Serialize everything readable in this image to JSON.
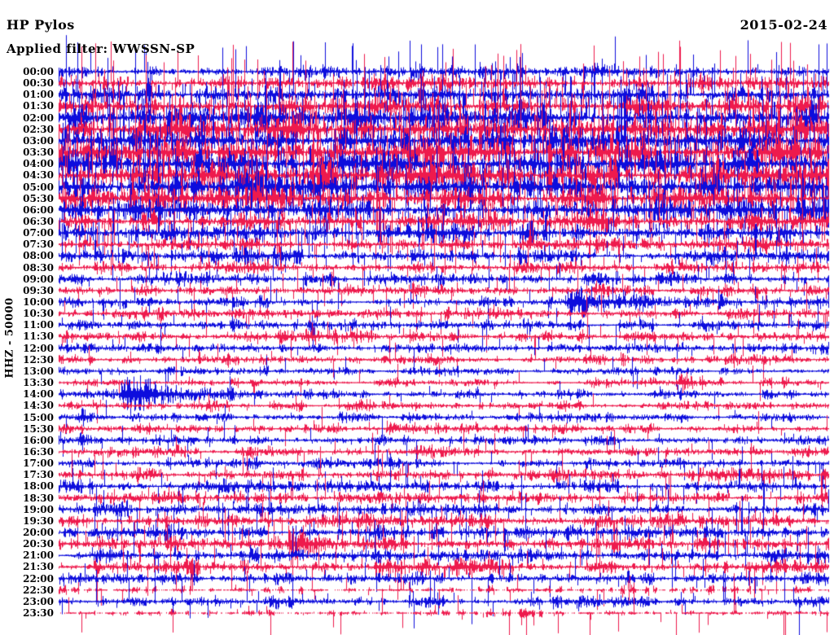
{
  "header": {
    "station": "HP Pylos",
    "filter_label": "Applied filter: WWSSN-SP",
    "date": "2015-02-24"
  },
  "y_axis": {
    "label": "HHZ - 50000"
  },
  "colors": {
    "background": "#ffffff",
    "text": "#000000",
    "blue": "#0d0ddd",
    "red": "#ee1a4d"
  },
  "chart_data": {
    "type": "line",
    "subtype": "helicorder-seismogram",
    "title": "HP Pylos",
    "date": "2015-02-24",
    "filter": "WWSSN-SP",
    "channel": "HHZ",
    "scale": 50000,
    "minutes_per_row": 30,
    "rows_count": 48,
    "time_start": "00:00",
    "time_end": "24:00",
    "color_rule": "even rows blue, odd rows red",
    "noise_note": "amp = typical noise half-amplitude in px; spike_p = tall-transient probability per column; spike_h = tall-transient height in px",
    "rows": [
      {
        "label": "00:00",
        "color": "blue",
        "amp": 2.2,
        "spike_p": 0.05,
        "spike_h": 28,
        "events": []
      },
      {
        "label": "00:30",
        "color": "red",
        "amp": 2.6,
        "spike_p": 0.08,
        "spike_h": 36,
        "events": []
      },
      {
        "label": "01:00",
        "color": "blue",
        "amp": 3.2,
        "spike_p": 0.11,
        "spike_h": 46,
        "events": []
      },
      {
        "label": "01:30",
        "color": "red",
        "amp": 4.0,
        "spike_p": 0.13,
        "spike_h": 52,
        "events": []
      },
      {
        "label": "02:00",
        "color": "blue",
        "amp": 4.8,
        "spike_p": 0.16,
        "spike_h": 58,
        "events": []
      },
      {
        "label": "02:30",
        "color": "red",
        "amp": 5.2,
        "spike_p": 0.17,
        "spike_h": 60,
        "events": []
      },
      {
        "label": "03:00",
        "color": "blue",
        "amp": 5.2,
        "spike_p": 0.17,
        "spike_h": 60,
        "events": []
      },
      {
        "label": "03:30",
        "color": "red",
        "amp": 5.2,
        "spike_p": 0.17,
        "spike_h": 58,
        "events": []
      },
      {
        "label": "04:00",
        "color": "blue",
        "amp": 5.4,
        "spike_p": 0.18,
        "spike_h": 58,
        "events": []
      },
      {
        "label": "04:30",
        "color": "red",
        "amp": 5.2,
        "spike_p": 0.17,
        "spike_h": 55,
        "events": []
      },
      {
        "label": "05:00",
        "color": "blue",
        "amp": 4.6,
        "spike_p": 0.15,
        "spike_h": 50,
        "events": []
      },
      {
        "label": "05:30",
        "color": "red",
        "amp": 4.4,
        "spike_p": 0.14,
        "spike_h": 48,
        "events": []
      },
      {
        "label": "06:00",
        "color": "blue",
        "amp": 4.2,
        "spike_p": 0.13,
        "spike_h": 42,
        "events": []
      },
      {
        "label": "06:30",
        "color": "red",
        "amp": 3.8,
        "spike_p": 0.12,
        "spike_h": 38,
        "events": []
      },
      {
        "label": "07:00",
        "color": "blue",
        "amp": 3.2,
        "spike_p": 0.09,
        "spike_h": 32,
        "events": []
      },
      {
        "label": "07:30",
        "color": "red",
        "amp": 2.9,
        "spike_p": 0.08,
        "spike_h": 30,
        "events": []
      },
      {
        "label": "08:00",
        "color": "blue",
        "amp": 2.6,
        "spike_p": 0.06,
        "spike_h": 28,
        "events": []
      },
      {
        "label": "08:30",
        "color": "red",
        "amp": 2.5,
        "spike_p": 0.06,
        "spike_h": 26,
        "events": []
      },
      {
        "label": "09:00",
        "color": "blue",
        "amp": 2.4,
        "spike_p": 0.05,
        "spike_h": 26,
        "events": []
      },
      {
        "label": "09:30",
        "color": "red",
        "amp": 2.3,
        "spike_p": 0.05,
        "spike_h": 24,
        "events": []
      },
      {
        "label": "10:00",
        "color": "blue",
        "amp": 2.2,
        "spike_p": 0.04,
        "spike_h": 22,
        "events": [
          {
            "time": "10:20",
            "pos": 0.665,
            "amp": 12,
            "coda": 45
          }
        ]
      },
      {
        "label": "10:30",
        "color": "red",
        "amp": 2.2,
        "spike_p": 0.04,
        "spike_h": 22,
        "events": []
      },
      {
        "label": "11:00",
        "color": "blue",
        "amp": 2.0,
        "spike_p": 0.035,
        "spike_h": 20,
        "events": [
          {
            "time": "11:25",
            "pos": 0.835,
            "amp": 5,
            "coda": 18
          }
        ]
      },
      {
        "label": "11:30",
        "color": "red",
        "amp": 2.0,
        "spike_p": 0.035,
        "spike_h": 20,
        "events": [
          {
            "time": "11:38",
            "pos": 0.285,
            "amp": 6,
            "coda": 20
          }
        ]
      },
      {
        "label": "12:00",
        "color": "blue",
        "amp": 1.9,
        "spike_p": 0.03,
        "spike_h": 18,
        "events": []
      },
      {
        "label": "12:30",
        "color": "red",
        "amp": 1.9,
        "spike_p": 0.03,
        "spike_h": 18,
        "events": []
      },
      {
        "label": "13:00",
        "color": "blue",
        "amp": 1.6,
        "spike_p": 0.02,
        "spike_h": 16,
        "events": []
      },
      {
        "label": "13:30",
        "color": "red",
        "amp": 1.6,
        "spike_p": 0.025,
        "spike_h": 16,
        "events": [
          {
            "time": "13:54",
            "pos": 0.805,
            "amp": 6,
            "coda": 16
          }
        ]
      },
      {
        "label": "14:00",
        "color": "blue",
        "amp": 1.6,
        "spike_p": 0.02,
        "spike_h": 16,
        "events": [
          {
            "time": "14:02",
            "pos": 0.085,
            "amp": 14,
            "coda": 60
          }
        ]
      },
      {
        "label": "14:30",
        "color": "red",
        "amp": 1.6,
        "spike_p": 0.02,
        "spike_h": 15,
        "events": []
      },
      {
        "label": "15:00",
        "color": "blue",
        "amp": 1.6,
        "spike_p": 0.02,
        "spike_h": 15,
        "events": [
          {
            "time": "15:01",
            "pos": 0.03,
            "amp": 6,
            "coda": 15
          }
        ]
      },
      {
        "label": "15:30",
        "color": "red",
        "amp": 1.7,
        "spike_p": 0.025,
        "spike_h": 16,
        "events": []
      },
      {
        "label": "16:00",
        "color": "blue",
        "amp": 1.8,
        "spike_p": 0.03,
        "spike_h": 18,
        "events": [
          {
            "time": "16:01",
            "pos": 0.03,
            "amp": 5,
            "coda": 12
          }
        ]
      },
      {
        "label": "16:30",
        "color": "red",
        "amp": 1.9,
        "spike_p": 0.03,
        "spike_h": 18,
        "events": []
      },
      {
        "label": "17:00",
        "color": "blue",
        "amp": 2.0,
        "spike_p": 0.035,
        "spike_h": 20,
        "events": []
      },
      {
        "label": "17:30",
        "color": "red",
        "amp": 2.2,
        "spike_p": 0.05,
        "spike_h": 26,
        "events": []
      },
      {
        "label": "18:00",
        "color": "blue",
        "amp": 2.3,
        "spike_p": 0.05,
        "spike_h": 28,
        "events": []
      },
      {
        "label": "18:30",
        "color": "red",
        "amp": 2.3,
        "spike_p": 0.05,
        "spike_h": 28,
        "events": []
      },
      {
        "label": "19:00",
        "color": "blue",
        "amp": 2.4,
        "spike_p": 0.055,
        "spike_h": 28,
        "events": []
      },
      {
        "label": "19:30",
        "color": "red",
        "amp": 2.6,
        "spike_p": 0.06,
        "spike_h": 30,
        "events": []
      },
      {
        "label": "20:00",
        "color": "blue",
        "amp": 2.7,
        "spike_p": 0.06,
        "spike_h": 30,
        "events": []
      },
      {
        "label": "20:30",
        "color": "red",
        "amp": 2.7,
        "spike_p": 0.06,
        "spike_h": 30,
        "events": [
          {
            "time": "20:39",
            "pos": 0.3,
            "amp": 11,
            "coda": 35
          },
          {
            "time": "20:52",
            "pos": 0.72,
            "amp": 5,
            "coda": 12
          }
        ]
      },
      {
        "label": "21:00",
        "color": "blue",
        "amp": 2.6,
        "spike_p": 0.055,
        "spike_h": 28,
        "events": []
      },
      {
        "label": "21:30",
        "color": "red",
        "amp": 2.6,
        "spike_p": 0.055,
        "spike_h": 28,
        "events": [
          {
            "time": "21:45",
            "pos": 0.515,
            "amp": 6,
            "coda": 20
          }
        ]
      },
      {
        "label": "22:00",
        "color": "blue",
        "amp": 2.4,
        "spike_p": 0.04,
        "spike_h": 24,
        "events": []
      },
      {
        "label": "22:30",
        "color": "red",
        "amp": 1.6,
        "spike_p": 0.05,
        "spike_h": 28,
        "gappy": true,
        "events": []
      },
      {
        "label": "23:00",
        "color": "blue",
        "amp": 2.2,
        "spike_p": 0.05,
        "spike_h": 26,
        "events": []
      },
      {
        "label": "23:30",
        "color": "red",
        "amp": 1.4,
        "spike_p": 0.07,
        "spike_h": 36,
        "gappy": true,
        "down_bias": true,
        "events": []
      }
    ]
  }
}
